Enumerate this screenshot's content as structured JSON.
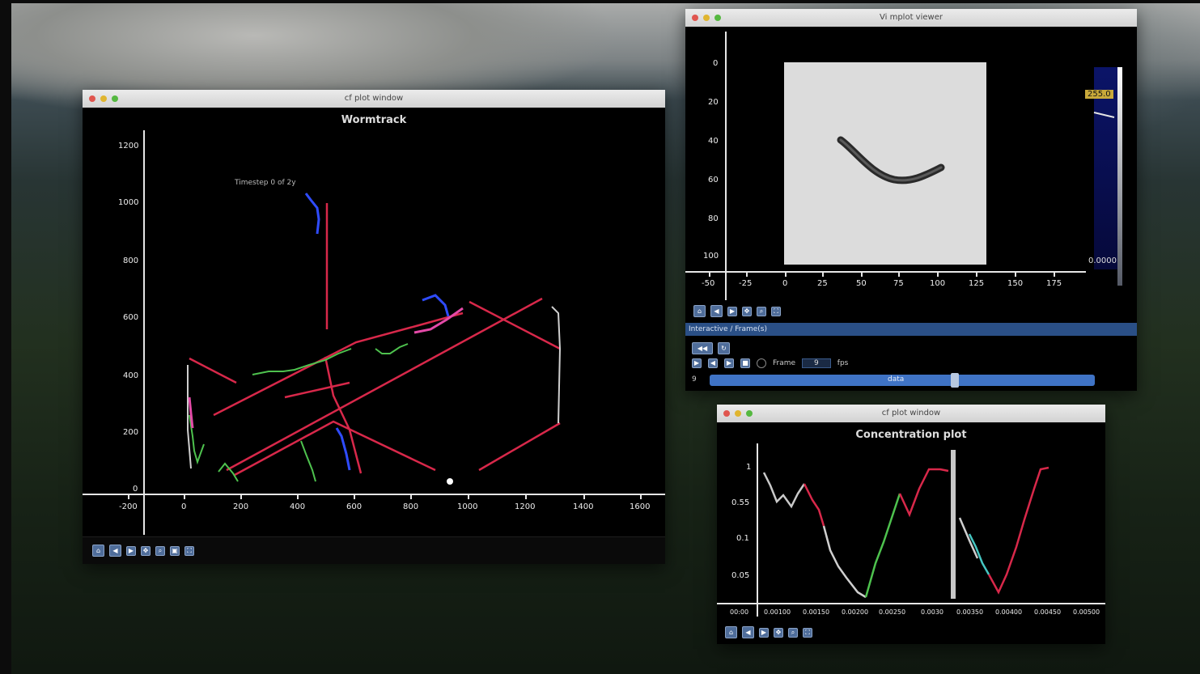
{
  "wormtrack_window": {
    "title": "cf plot window",
    "plot_title": "Wormtrack",
    "y_ticks": [
      "1200",
      "1000",
      "800",
      "600",
      "400",
      "200",
      "0"
    ],
    "x_ticks": [
      "-200",
      "0",
      "200",
      "400",
      "600",
      "800",
      "1000",
      "1200",
      "1400",
      "1600"
    ],
    "annotation": "Timestep 0 of 2y",
    "toolbar_icons": [
      "home-icon",
      "back-icon",
      "forward-icon",
      "pan-icon",
      "zoom-icon",
      "save-icon",
      "fullscreen-icon"
    ]
  },
  "image_viewer_window": {
    "title": "Vi mplot viewer",
    "y_ticks": [
      "0",
      "20",
      "40",
      "60",
      "80",
      "100"
    ],
    "x_ticks": [
      "-50",
      "-25",
      "0",
      "25",
      "50",
      "75",
      "100",
      "125",
      "150",
      "175"
    ],
    "colorbar_top": "255.0",
    "colorbar_bottom": "0.0000",
    "panel_label": "Interactive / Frame(s)",
    "frame_label": "Frame",
    "fps_label": "fps",
    "frame_value": "9",
    "frame_counter": "9",
    "slider_label": "data"
  },
  "concentration_window": {
    "title": "cf plot window",
    "plot_title": "Concentration plot",
    "y_ticks": [
      "1",
      "0.55",
      "0.1",
      "0.05"
    ],
    "x_ticks": [
      "00:00",
      "0.00100",
      "0.00150",
      "0.00200",
      "0.00250",
      "0.0030",
      "0.00350",
      "0.00400",
      "0.00450",
      "0.00500"
    ],
    "toolbar_icons": [
      "home-icon",
      "back-icon",
      "forward-icon",
      "pan-icon",
      "zoom-icon",
      "save-icon",
      "fullscreen-icon"
    ]
  },
  "colors": {
    "red_track": "#d8284a",
    "green_track": "#4ec24e",
    "blue_track": "#2f4cff",
    "axis": "#e6e6e6",
    "toolbar_button": "#4f6d9a",
    "frame_bar": "#2a4f86",
    "slider": "#3f73c5",
    "colorbar_dark": "#0b1468"
  }
}
